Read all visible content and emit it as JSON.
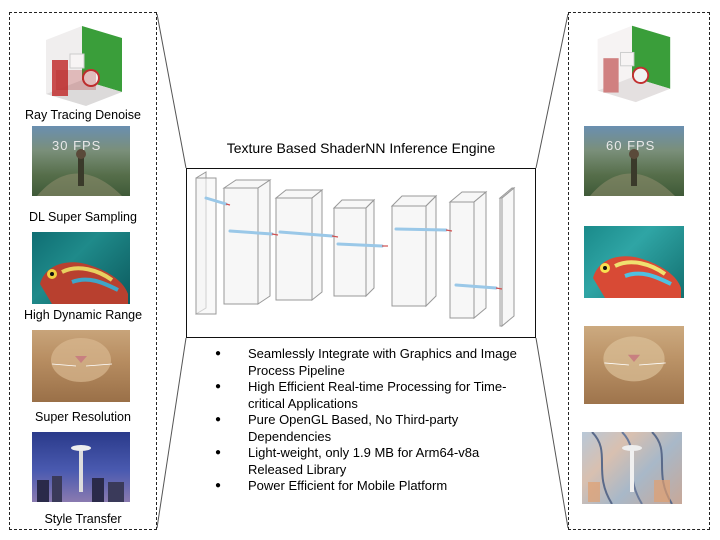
{
  "title": "Texture Based ShaderNN Inference Engine",
  "left_items": [
    {
      "label": "Ray Tracing Denoise"
    },
    {
      "label": "DL Super Sampling",
      "overlay": "30 FPS"
    },
    {
      "label": "High Dynamic Range"
    },
    {
      "label": "Super Resolution"
    },
    {
      "label": "Style Transfer"
    }
  ],
  "right_items": [
    {
      "overlay": ""
    },
    {
      "overlay": "60 FPS"
    },
    {
      "overlay": ""
    },
    {
      "overlay": ""
    },
    {
      "overlay": ""
    }
  ],
  "features": [
    "Seamlessly Integrate with Graphics and Image Process Pipeline",
    "High Efficient Real-time Processing for Time-critical Applications",
    "Pure OpenGL Based, No Third-party Dependencies",
    "Light-weight, only 1.9 MB for Arm64-v8a Released Library",
    "Power Efficient for Mobile Platform"
  ],
  "colors": {
    "accent_green": "#3a9e3a",
    "accent_red": "#c23030",
    "arrow_blue": "#9ac8e8"
  }
}
